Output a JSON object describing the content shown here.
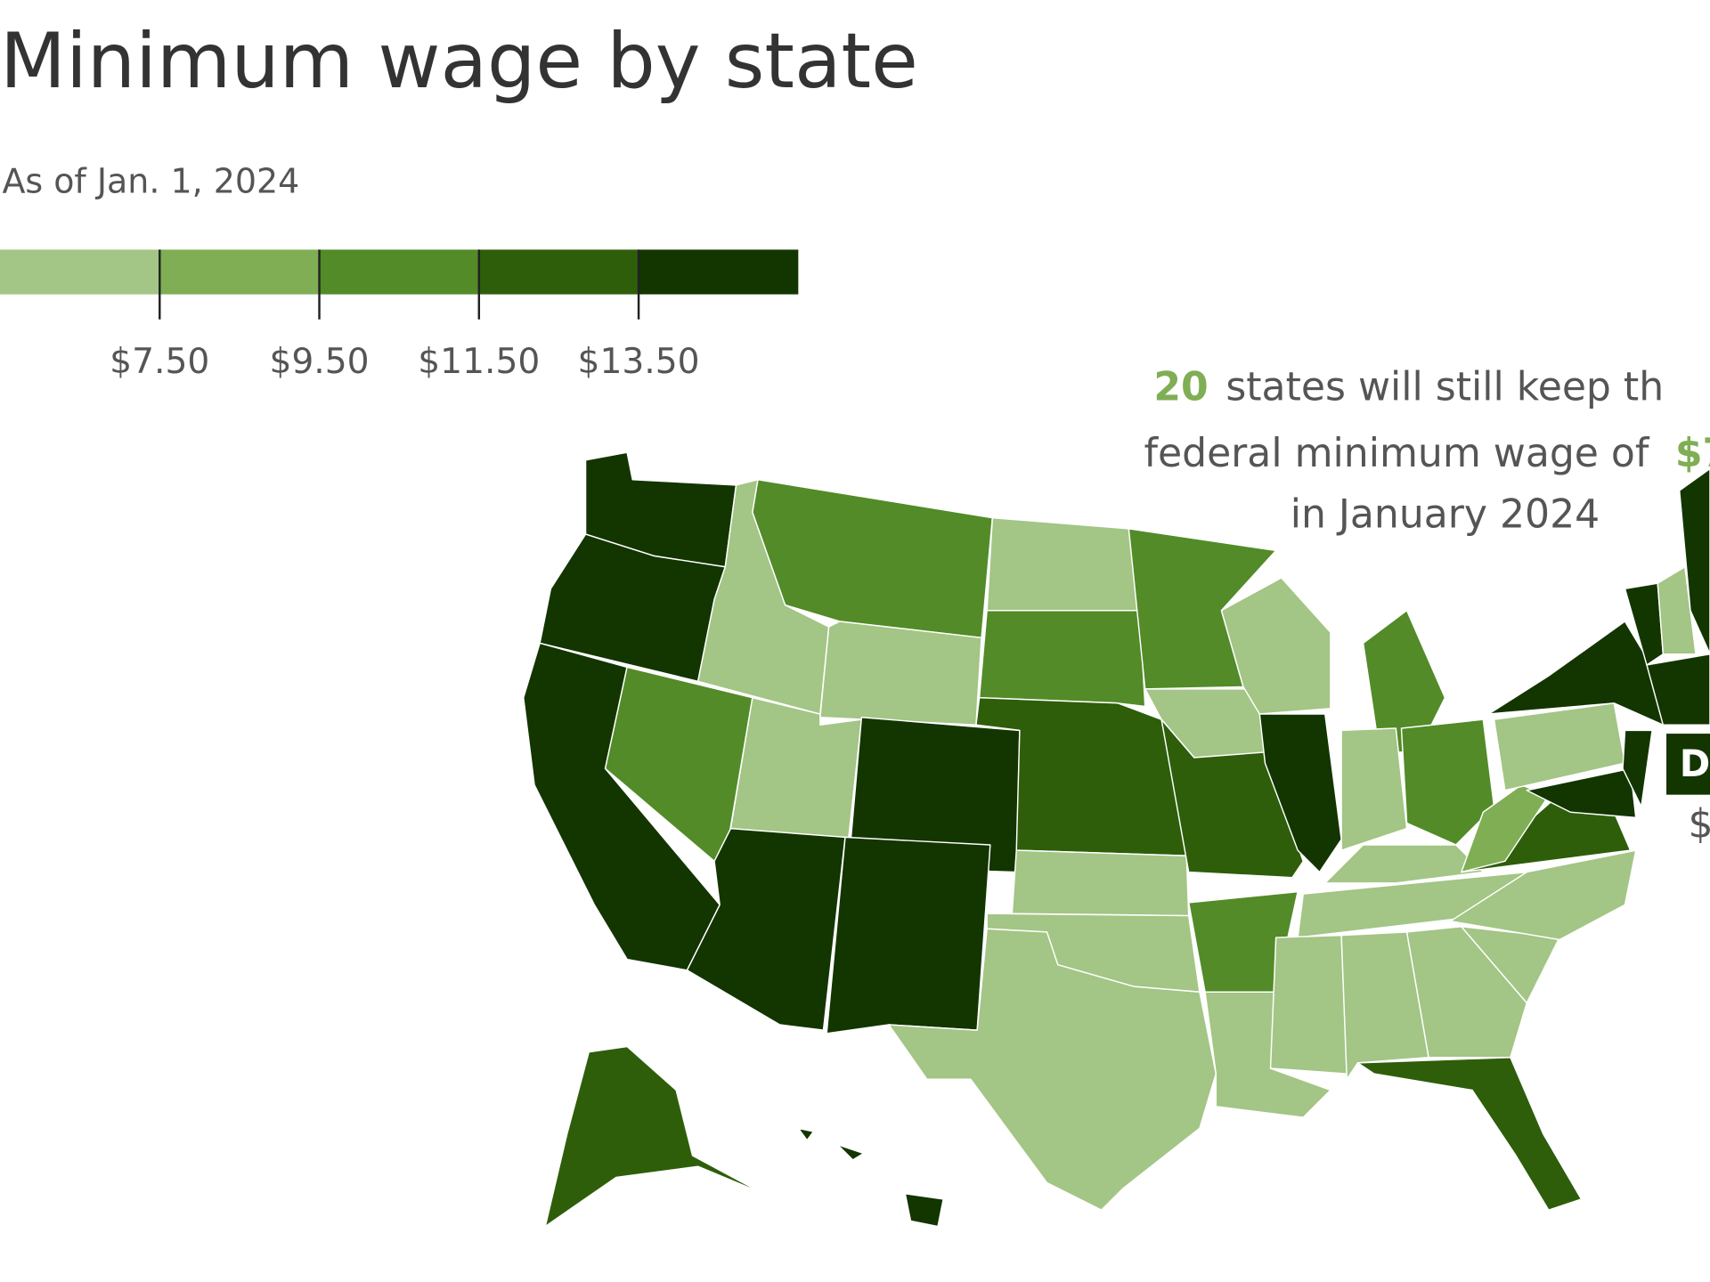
{
  "header": {
    "title": "Minimum wage by state",
    "subtitle": "As of Jan. 1, 2024"
  },
  "legend": {
    "colors": [
      "#a3c585",
      "#7fae55",
      "#528b28",
      "#2e5e0a",
      "#133500"
    ],
    "lim": [
      5.5,
      15.5
    ],
    "ticks": [
      {
        "value": 7.5,
        "label": "$7.50"
      },
      {
        "value": 9.5,
        "label": "$9.50"
      },
      {
        "value": 11.5,
        "label": "$11.50"
      },
      {
        "value": 13.5,
        "label": "$13.50"
      }
    ]
  },
  "annotation": {
    "count": "20",
    "line1": "states will still keep th",
    "line2": "federal minimum wage of",
    "amount": "$7",
    "line3": "in January 2024"
  },
  "dc": {
    "label": "D",
    "value": "$"
  },
  "map": {
    "regions": [
      4,
      4,
      4,
      2,
      0,
      2,
      0,
      0,
      4,
      4,
      4,
      0,
      2,
      3,
      0,
      0,
      0,
      2,
      0,
      3,
      2,
      0,
      0,
      4,
      2,
      0,
      2,
      0,
      0,
      0,
      0,
      0,
      3,
      0,
      0,
      3,
      1,
      0,
      4,
      4,
      4,
      4,
      0,
      4,
      4,
      3,
      4,
      4,
      4
    ]
  }
}
